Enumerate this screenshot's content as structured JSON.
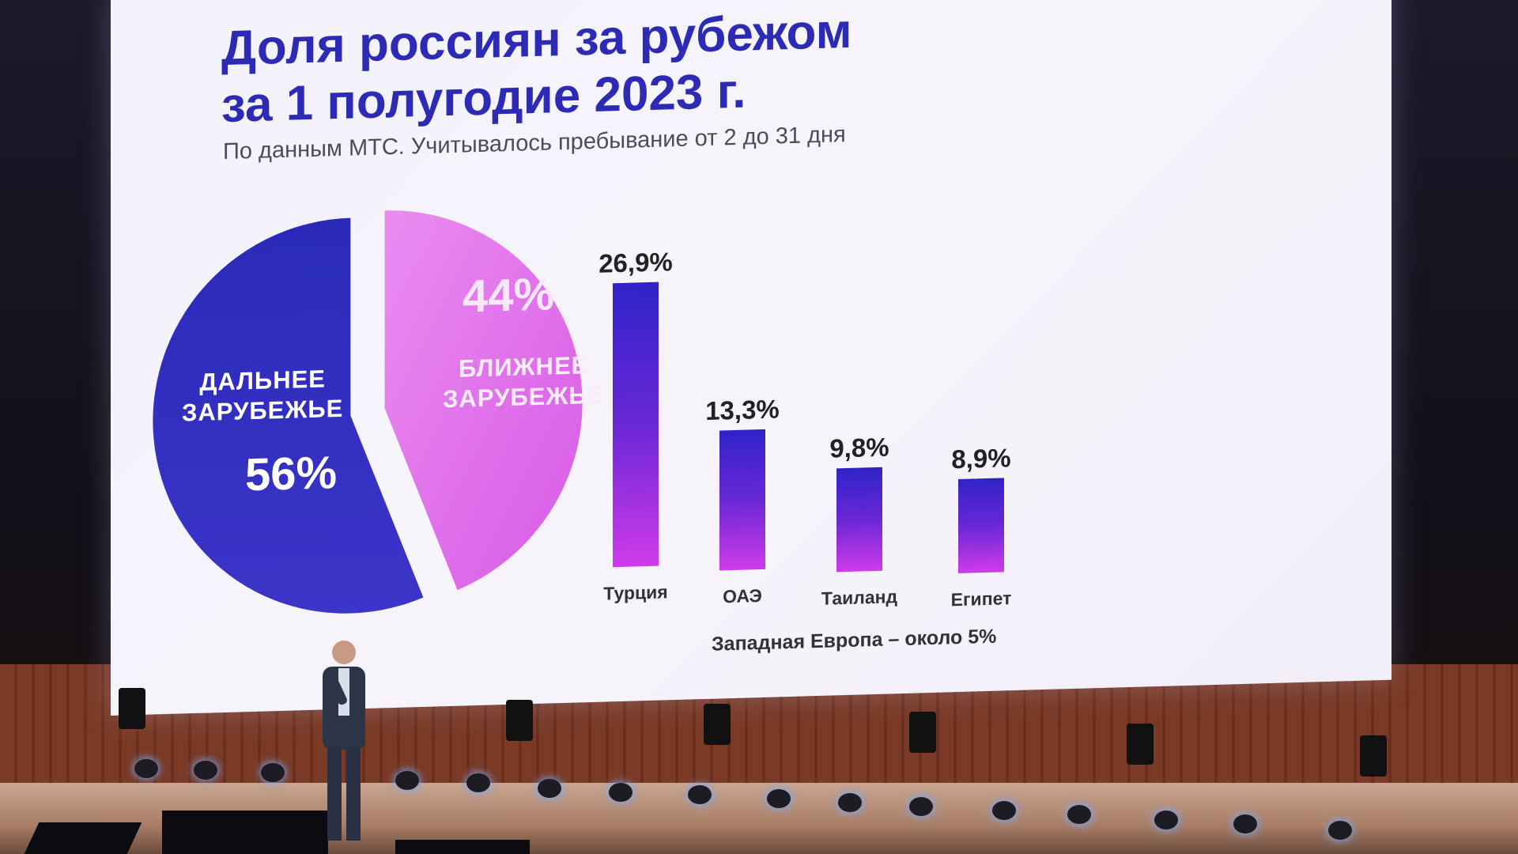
{
  "title_lines": [
    "Доля россиян за рубежом",
    "за 1 полугодие 2023 г."
  ],
  "subtitle": "По данным МТС. Учитывалось пребывание от 2 до 31 дня",
  "footnote": "Западная Европа – около 5%",
  "colors": {
    "far": "#2f2ec2",
    "near": "#e36ee9",
    "bar_top": "#2f23c8",
    "bar_bottom": "#cf3bea"
  },
  "chart_data": [
    {
      "type": "pie",
      "slices": [
        {
          "label_lines": [
            "ДАЛЬНЕЕ",
            "ЗАРУБЕЖЬЕ"
          ],
          "value": 56,
          "value_label": "56%"
        },
        {
          "label_lines": [
            "БЛИЖНЕЕ",
            "ЗАРУБЕЖЬЕ"
          ],
          "value": 44,
          "value_label": "44%"
        }
      ]
    },
    {
      "type": "bar",
      "categories": [
        "Турция",
        "ОАЭ",
        "Таиланд",
        "Египет"
      ],
      "values": [
        26.9,
        13.3,
        9.8,
        8.9
      ],
      "value_labels": [
        "26,9%",
        "13,3%",
        "9,8%",
        "8,9%"
      ],
      "ylim": [
        0,
        27
      ],
      "grid": false
    }
  ]
}
